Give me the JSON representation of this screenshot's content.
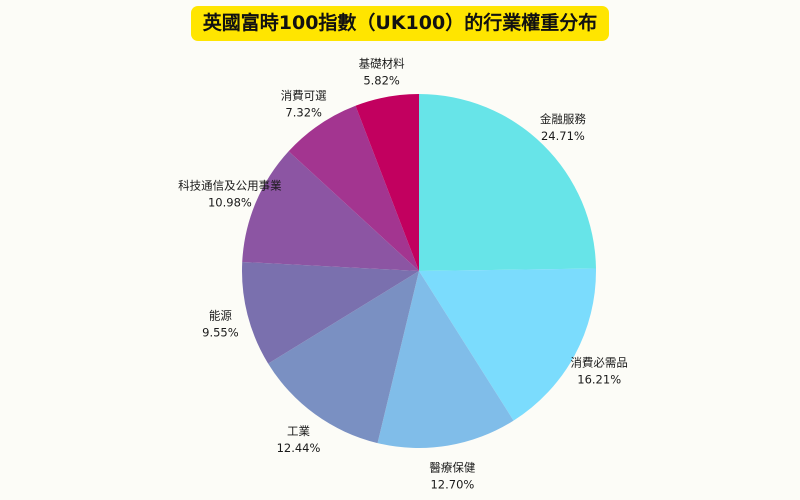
{
  "chart_data": {
    "type": "pie",
    "title": "英國富時100指數（UK100）的行業權重分布",
    "start_angle_deg": 90,
    "direction": "clockwise",
    "slices": [
      {
        "label": "金融服務",
        "value": 24.71,
        "display": "24.71%",
        "color": "#67e4e8"
      },
      {
        "label": "消費必需品",
        "value": 16.21,
        "display": "16.21%",
        "color": "#7bdcfd"
      },
      {
        "label": "醫療保健",
        "value": 12.7,
        "display": "12.70%",
        "color": "#80bde9"
      },
      {
        "label": "工業",
        "value": 12.44,
        "display": "12.44%",
        "color": "#7a90c2"
      },
      {
        "label": "能源",
        "value": 9.55,
        "display": "9.55%",
        "color": "#7a70ae"
      },
      {
        "label": "科技通信及公用事業",
        "value": 10.98,
        "display": "10.98%",
        "color": "#8c55a3"
      },
      {
        "label": "消費可選",
        "value": 7.32,
        "display": "7.32%",
        "color": "#a33590"
      },
      {
        "label": "基礎材料",
        "value": 5.82,
        "display": "5.82%",
        "color": "#c2005f"
      }
    ]
  }
}
